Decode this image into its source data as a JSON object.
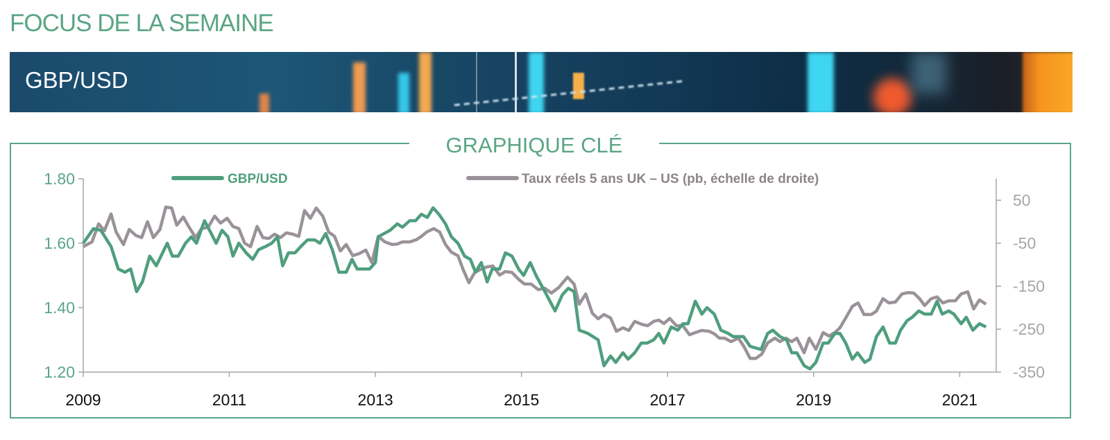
{
  "header": {
    "title": "FOCUS DE LA SEMAINE",
    "banner_title": "GBP/USD"
  },
  "colors": {
    "accent": "#5aa586",
    "series_gbp": "#4f9e7e",
    "series_rates": "#9a9299",
    "banner_bg": "#123a57"
  },
  "chart_data": {
    "type": "line",
    "title": "GRAPHIQUE CLÉ",
    "xlabel": "",
    "ylabel": "",
    "xlim": [
      2009,
      2021.5
    ],
    "x_ticks": [
      "2009",
      "2011",
      "2013",
      "2015",
      "2017",
      "2019",
      "2021"
    ],
    "y_left": {
      "ylim": [
        1.2,
        1.8
      ],
      "ticks": [
        "1.80",
        "1.60",
        "1.40",
        "1.20"
      ]
    },
    "y_right": {
      "ylim": [
        -350,
        100
      ],
      "ticks": [
        "50",
        "-50",
        "-150",
        "-250",
        "-350"
      ]
    },
    "grid": false,
    "legend_position": "top",
    "series": [
      {
        "name": "GBP/USD",
        "axis": "left",
        "color": "#4f9e7e",
        "points": [
          [
            2009.0,
            1.6
          ],
          [
            2009.14,
            1.645
          ],
          [
            2009.24,
            1.64
          ],
          [
            2009.38,
            1.59
          ],
          [
            2009.48,
            1.52
          ],
          [
            2009.57,
            1.51
          ],
          [
            2009.65,
            1.52
          ],
          [
            2009.73,
            1.45
          ],
          [
            2009.81,
            1.48
          ],
          [
            2009.91,
            1.56
          ],
          [
            2010.0,
            1.53
          ],
          [
            2010.15,
            1.6
          ],
          [
            2010.22,
            1.56
          ],
          [
            2010.3,
            1.56
          ],
          [
            2010.4,
            1.6
          ],
          [
            2010.48,
            1.62
          ],
          [
            2010.55,
            1.6
          ],
          [
            2010.66,
            1.67
          ],
          [
            2010.73,
            1.64
          ],
          [
            2010.82,
            1.6
          ],
          [
            2010.9,
            1.64
          ],
          [
            2010.98,
            1.62
          ],
          [
            2011.05,
            1.56
          ],
          [
            2011.13,
            1.6
          ],
          [
            2011.23,
            1.57
          ],
          [
            2011.32,
            1.55
          ],
          [
            2011.4,
            1.58
          ],
          [
            2011.5,
            1.59
          ],
          [
            2011.58,
            1.6
          ],
          [
            2011.66,
            1.62
          ],
          [
            2011.73,
            1.53
          ],
          [
            2011.81,
            1.57
          ],
          [
            2011.9,
            1.57
          ],
          [
            2011.98,
            1.59
          ],
          [
            2012.07,
            1.61
          ],
          [
            2012.17,
            1.61
          ],
          [
            2012.24,
            1.6
          ],
          [
            2012.32,
            1.63
          ],
          [
            2012.41,
            1.58
          ],
          [
            2012.5,
            1.51
          ],
          [
            2012.6,
            1.51
          ],
          [
            2012.68,
            1.55
          ],
          [
            2012.75,
            1.52
          ],
          [
            2012.85,
            1.52
          ],
          [
            2012.92,
            1.52
          ],
          [
            2013.0,
            1.54
          ],
          [
            2013.04,
            1.62
          ],
          [
            2013.2,
            1.64
          ],
          [
            2013.3,
            1.66
          ],
          [
            2013.37,
            1.65
          ],
          [
            2013.47,
            1.67
          ],
          [
            2013.55,
            1.67
          ],
          [
            2013.63,
            1.69
          ],
          [
            2013.71,
            1.68
          ],
          [
            2013.79,
            1.71
          ],
          [
            2013.87,
            1.69
          ],
          [
            2013.96,
            1.66
          ],
          [
            2014.04,
            1.62
          ],
          [
            2014.13,
            1.6
          ],
          [
            2014.22,
            1.56
          ],
          [
            2014.3,
            1.55
          ],
          [
            2014.37,
            1.51
          ],
          [
            2014.45,
            1.54
          ],
          [
            2014.53,
            1.48
          ],
          [
            2014.6,
            1.52
          ],
          [
            2014.7,
            1.52
          ],
          [
            2014.78,
            1.57
          ],
          [
            2014.87,
            1.56
          ],
          [
            2014.96,
            1.52
          ],
          [
            2015.03,
            1.5
          ],
          [
            2015.12,
            1.54
          ],
          [
            2015.2,
            1.5
          ],
          [
            2015.32,
            1.45
          ],
          [
            2015.46,
            1.39
          ],
          [
            2015.56,
            1.44
          ],
          [
            2015.64,
            1.46
          ],
          [
            2015.72,
            1.45
          ],
          [
            2015.79,
            1.33
          ],
          [
            2015.91,
            1.32
          ],
          [
            2016.05,
            1.3
          ],
          [
            2016.13,
            1.22
          ],
          [
            2016.22,
            1.25
          ],
          [
            2016.29,
            1.23
          ],
          [
            2016.39,
            1.26
          ],
          [
            2016.46,
            1.24
          ],
          [
            2016.55,
            1.26
          ],
          [
            2016.64,
            1.29
          ],
          [
            2016.72,
            1.29
          ],
          [
            2016.81,
            1.3
          ],
          [
            2016.88,
            1.32
          ],
          [
            2016.95,
            1.29
          ],
          [
            2017.05,
            1.34
          ],
          [
            2017.14,
            1.33
          ],
          [
            2017.21,
            1.35
          ],
          [
            2017.28,
            1.35
          ],
          [
            2017.38,
            1.42
          ],
          [
            2017.47,
            1.38
          ],
          [
            2017.54,
            1.4
          ],
          [
            2017.64,
            1.38
          ],
          [
            2017.73,
            1.33
          ],
          [
            2017.83,
            1.32
          ],
          [
            2017.9,
            1.31
          ],
          [
            2018.04,
            1.31
          ],
          [
            2018.13,
            1.28
          ],
          [
            2018.28,
            1.27
          ],
          [
            2018.37,
            1.32
          ],
          [
            2018.44,
            1.33
          ],
          [
            2018.54,
            1.31
          ],
          [
            2018.63,
            1.3
          ],
          [
            2018.7,
            1.26
          ],
          [
            2018.77,
            1.26
          ],
          [
            2018.87,
            1.22
          ],
          [
            2018.95,
            1.21
          ],
          [
            2019.03,
            1.23
          ],
          [
            2019.13,
            1.29
          ],
          [
            2019.2,
            1.29
          ],
          [
            2019.29,
            1.32
          ],
          [
            2019.36,
            1.32
          ],
          [
            2019.44,
            1.29
          ],
          [
            2019.53,
            1.24
          ],
          [
            2019.6,
            1.26
          ],
          [
            2019.7,
            1.23
          ],
          [
            2019.77,
            1.24
          ],
          [
            2019.86,
            1.31
          ],
          [
            2019.95,
            1.34
          ],
          [
            2020.04,
            1.29
          ],
          [
            2020.12,
            1.29
          ],
          [
            2020.19,
            1.33
          ],
          [
            2020.28,
            1.36
          ],
          [
            2020.35,
            1.37
          ],
          [
            2020.44,
            1.39
          ],
          [
            2020.52,
            1.38
          ],
          [
            2020.61,
            1.38
          ],
          [
            2020.69,
            1.42
          ],
          [
            2020.76,
            1.38
          ],
          [
            2020.85,
            1.39
          ],
          [
            2020.92,
            1.38
          ],
          [
            2021.02,
            1.35
          ],
          [
            2021.09,
            1.37
          ],
          [
            2021.18,
            1.33
          ],
          [
            2021.27,
            1.35
          ],
          [
            2021.36,
            1.34
          ]
        ]
      },
      {
        "name": "Taux réels 5 ans UK – US (pb, échelle de droite)",
        "axis": "right",
        "color": "#9a9299",
        "points": [
          [
            2009.0,
            -58
          ],
          [
            2009.12,
            -47
          ],
          [
            2009.21,
            -5
          ],
          [
            2009.29,
            -21
          ],
          [
            2009.38,
            18
          ],
          [
            2009.45,
            -24
          ],
          [
            2009.55,
            -53
          ],
          [
            2009.63,
            -18
          ],
          [
            2009.72,
            -32
          ],
          [
            2009.8,
            -37
          ],
          [
            2009.88,
            0
          ],
          [
            2009.96,
            -37
          ],
          [
            2010.05,
            -18
          ],
          [
            2010.13,
            34
          ],
          [
            2010.21,
            32
          ],
          [
            2010.28,
            -8
          ],
          [
            2010.37,
            11
          ],
          [
            2010.45,
            -13
          ],
          [
            2010.54,
            -37
          ],
          [
            2010.62,
            -16
          ],
          [
            2010.71,
            -13
          ],
          [
            2010.8,
            13
          ],
          [
            2010.88,
            -3
          ],
          [
            2010.97,
            8
          ],
          [
            2011.05,
            -11
          ],
          [
            2011.13,
            -16
          ],
          [
            2011.21,
            -50
          ],
          [
            2011.29,
            -58
          ],
          [
            2011.38,
            -11
          ],
          [
            2011.46,
            -37
          ],
          [
            2011.54,
            -39
          ],
          [
            2011.62,
            -29
          ],
          [
            2011.7,
            -37
          ],
          [
            2011.78,
            -26
          ],
          [
            2011.87,
            -29
          ],
          [
            2011.95,
            -34
          ],
          [
            2012.03,
            26
          ],
          [
            2012.11,
            8
          ],
          [
            2012.19,
            32
          ],
          [
            2012.28,
            13
          ],
          [
            2012.36,
            -24
          ],
          [
            2012.44,
            -34
          ],
          [
            2012.52,
            -68
          ],
          [
            2012.6,
            -53
          ],
          [
            2012.69,
            -79
          ],
          [
            2012.78,
            -74
          ],
          [
            2012.87,
            -66
          ],
          [
            2012.95,
            -95
          ],
          [
            2013.04,
            -34
          ],
          [
            2013.13,
            -47
          ],
          [
            2013.23,
            -53
          ],
          [
            2013.3,
            -52
          ],
          [
            2013.37,
            -47
          ],
          [
            2013.47,
            -47
          ],
          [
            2013.56,
            -42
          ],
          [
            2013.63,
            -34
          ],
          [
            2013.71,
            -23
          ],
          [
            2013.8,
            -16
          ],
          [
            2013.88,
            -24
          ],
          [
            2013.96,
            -53
          ],
          [
            2014.04,
            -71
          ],
          [
            2014.13,
            -79
          ],
          [
            2014.2,
            -111
          ],
          [
            2014.28,
            -142
          ],
          [
            2014.36,
            -118
          ],
          [
            2014.44,
            -111
          ],
          [
            2014.53,
            -105
          ],
          [
            2014.61,
            -103
          ],
          [
            2014.7,
            -124
          ],
          [
            2014.78,
            -116
          ],
          [
            2014.87,
            -118
          ],
          [
            2014.96,
            -134
          ],
          [
            2015.04,
            -145
          ],
          [
            2015.13,
            -145
          ],
          [
            2015.23,
            -158
          ],
          [
            2015.32,
            -155
          ],
          [
            2015.41,
            -166
          ],
          [
            2015.51,
            -153
          ],
          [
            2015.63,
            -129
          ],
          [
            2015.72,
            -145
          ],
          [
            2015.79,
            -192
          ],
          [
            2015.88,
            -168
          ],
          [
            2015.97,
            -213
          ],
          [
            2016.05,
            -226
          ],
          [
            2016.13,
            -216
          ],
          [
            2016.22,
            -224
          ],
          [
            2016.3,
            -255
          ],
          [
            2016.39,
            -247
          ],
          [
            2016.47,
            -253
          ],
          [
            2016.55,
            -232
          ],
          [
            2016.65,
            -239
          ],
          [
            2016.73,
            -242
          ],
          [
            2016.81,
            -232
          ],
          [
            2016.88,
            -229
          ],
          [
            2016.95,
            -237
          ],
          [
            2017.03,
            -225
          ],
          [
            2017.12,
            -242
          ],
          [
            2017.21,
            -242
          ],
          [
            2017.3,
            -263
          ],
          [
            2017.38,
            -258
          ],
          [
            2017.47,
            -253
          ],
          [
            2017.57,
            -255
          ],
          [
            2017.64,
            -261
          ],
          [
            2017.71,
            -271
          ],
          [
            2017.78,
            -271
          ],
          [
            2017.87,
            -279
          ],
          [
            2017.97,
            -271
          ],
          [
            2018.05,
            -292
          ],
          [
            2018.13,
            -318
          ],
          [
            2018.21,
            -318
          ],
          [
            2018.29,
            -308
          ],
          [
            2018.37,
            -282
          ],
          [
            2018.47,
            -271
          ],
          [
            2018.54,
            -279
          ],
          [
            2018.62,
            -271
          ],
          [
            2018.7,
            -279
          ],
          [
            2018.77,
            -271
          ],
          [
            2018.87,
            -305
          ],
          [
            2018.94,
            -271
          ],
          [
            2019.03,
            -297
          ],
          [
            2019.13,
            -258
          ],
          [
            2019.21,
            -266
          ],
          [
            2019.29,
            -258
          ],
          [
            2019.36,
            -247
          ],
          [
            2019.44,
            -224
          ],
          [
            2019.53,
            -197
          ],
          [
            2019.61,
            -189
          ],
          [
            2019.69,
            -216
          ],
          [
            2019.79,
            -216
          ],
          [
            2019.86,
            -208
          ],
          [
            2019.95,
            -179
          ],
          [
            2020.03,
            -189
          ],
          [
            2020.12,
            -187
          ],
          [
            2020.21,
            -168
          ],
          [
            2020.29,
            -165
          ],
          [
            2020.37,
            -166
          ],
          [
            2020.45,
            -179
          ],
          [
            2020.52,
            -195
          ],
          [
            2020.61,
            -179
          ],
          [
            2020.69,
            -175
          ],
          [
            2020.77,
            -189
          ],
          [
            2020.85,
            -184
          ],
          [
            2020.94,
            -184
          ],
          [
            2021.02,
            -168
          ],
          [
            2021.11,
            -163
          ],
          [
            2021.19,
            -203
          ],
          [
            2021.27,
            -182
          ],
          [
            2021.36,
            -192
          ]
        ]
      }
    ]
  }
}
